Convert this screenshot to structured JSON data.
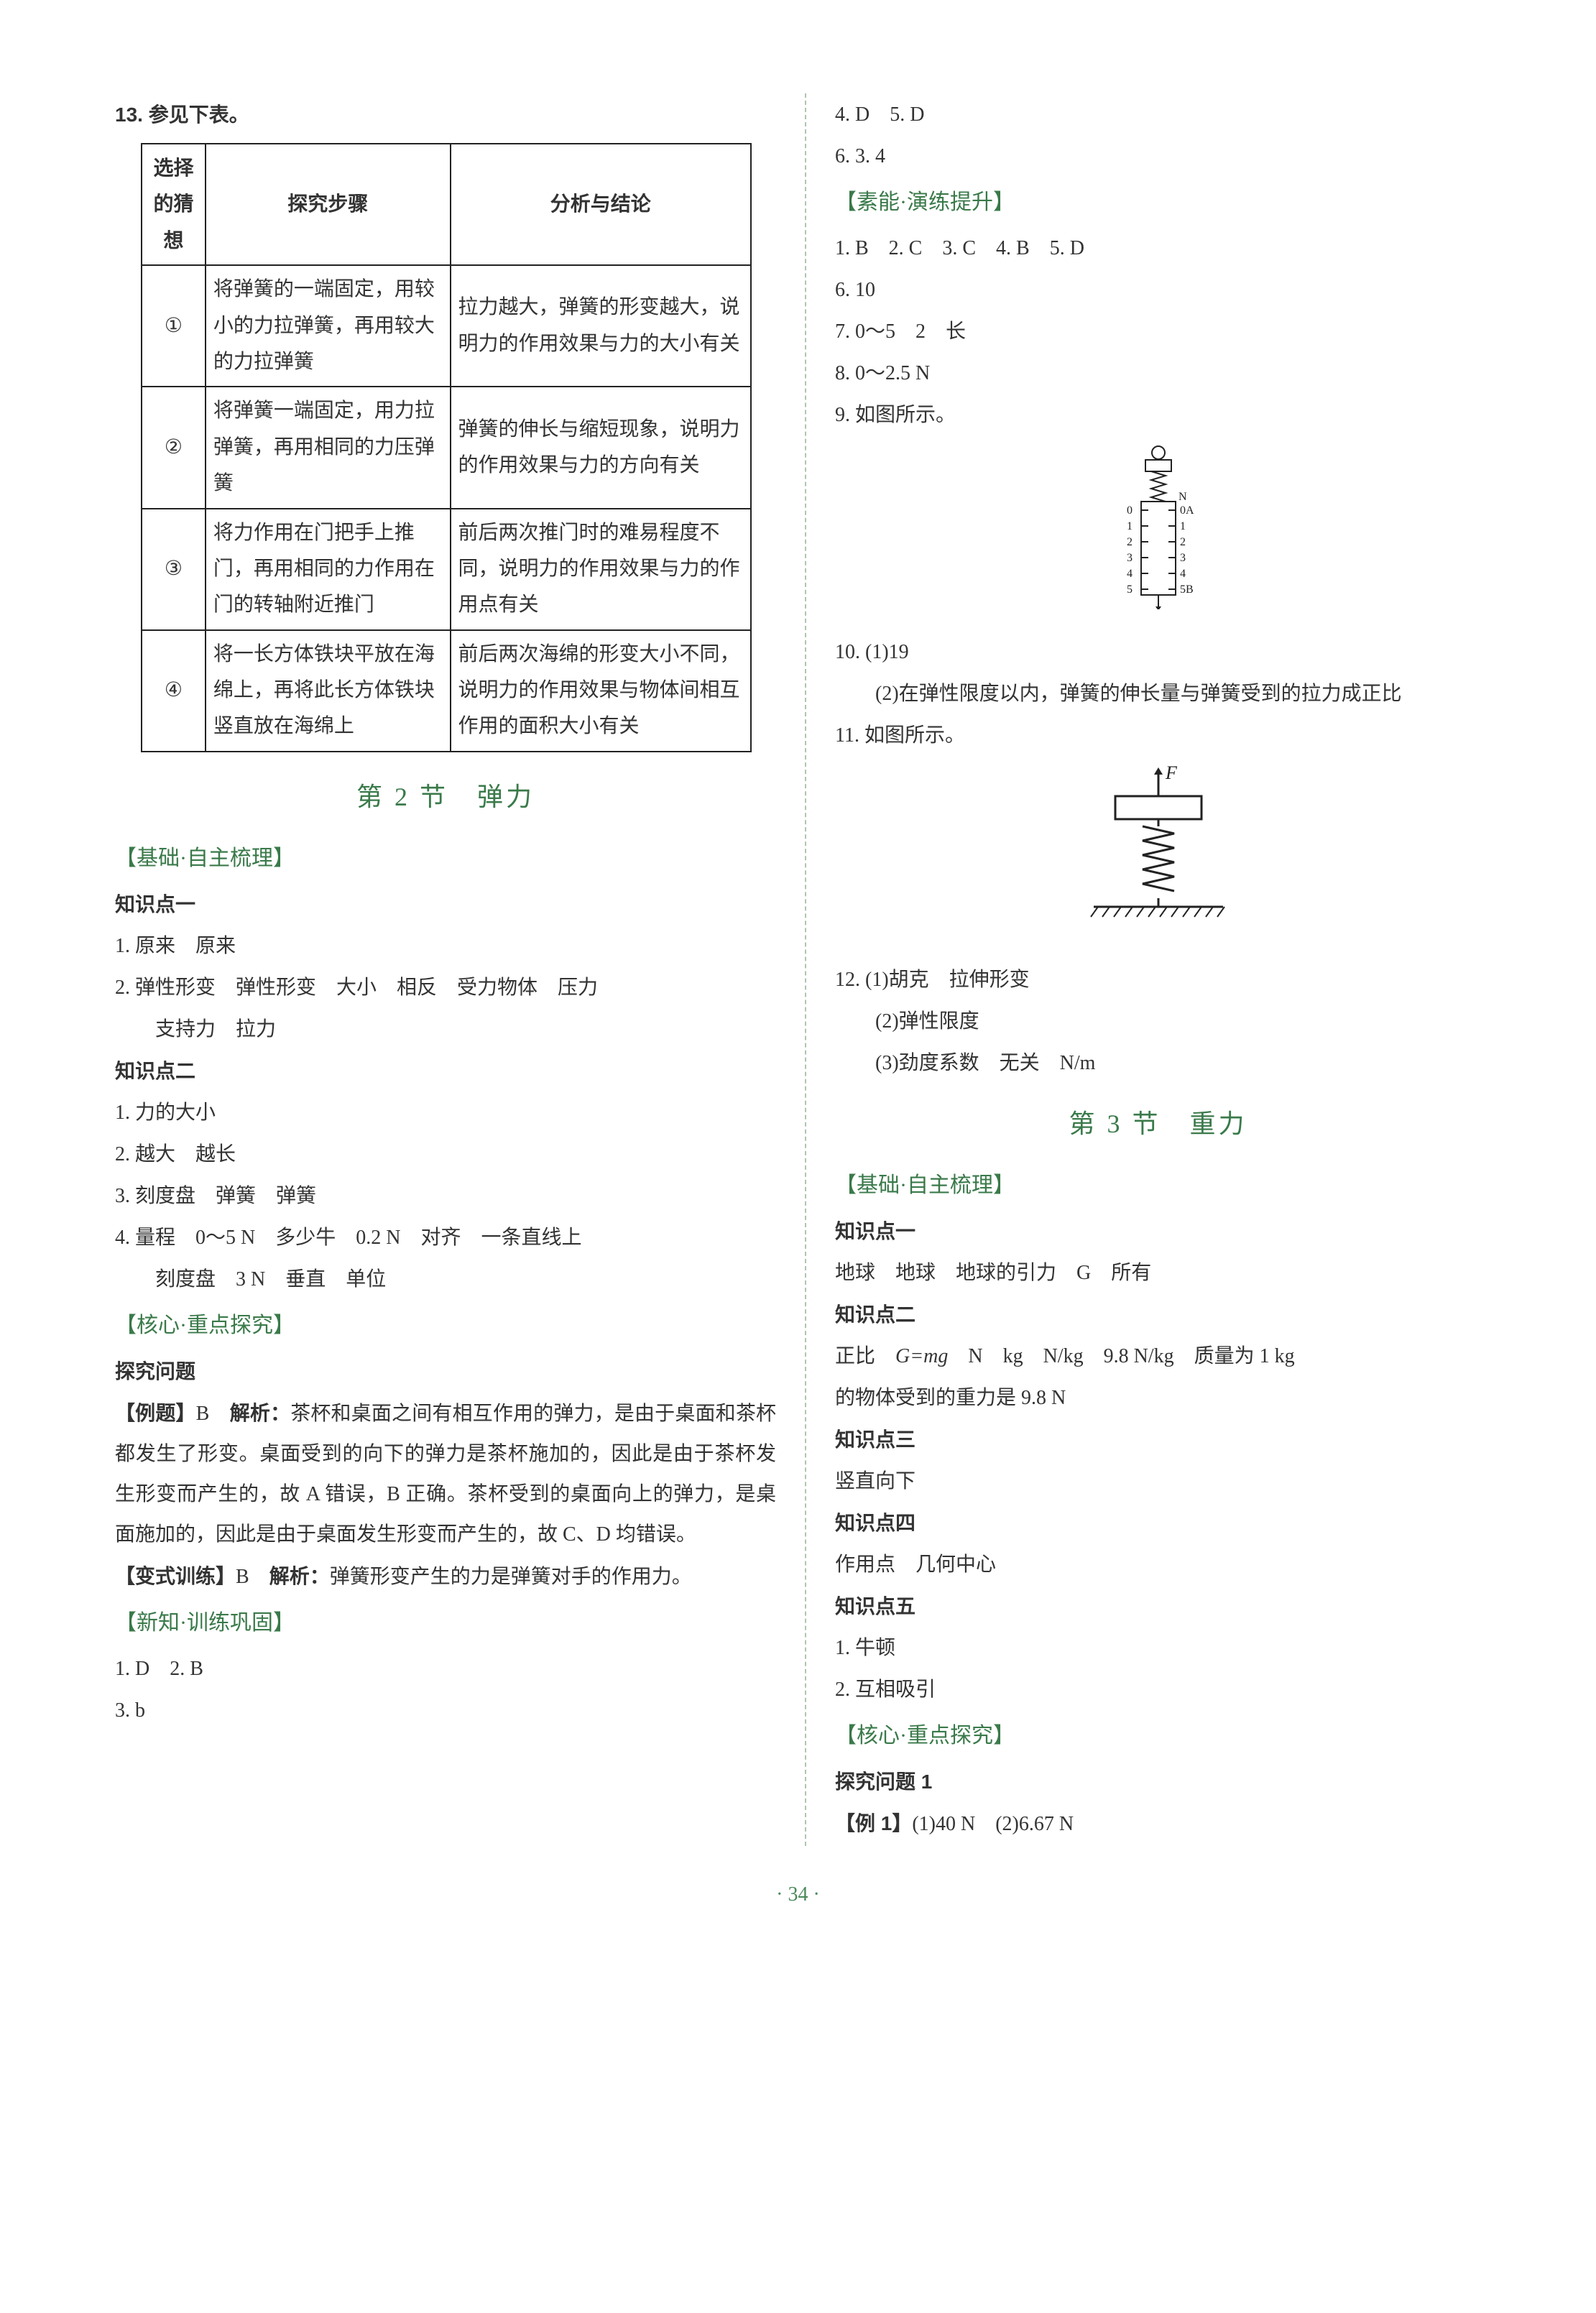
{
  "left": {
    "q13_intro": "13. 参见下表。",
    "table": {
      "headers": [
        "选择的猜想",
        "探究步骤",
        "分析与结论"
      ],
      "rows": [
        {
          "hyp": "①",
          "steps": "将弹簧的一端固定，用较小的力拉弹簧，再用较大的力拉弹簧",
          "conclusion": "拉力越大，弹簧的形变越大，说明力的作用效果与力的大小有关"
        },
        {
          "hyp": "②",
          "steps": "将弹簧一端固定，用力拉弹簧，再用相同的力压弹簧",
          "conclusion": "弹簧的伸长与缩短现象，说明力的作用效果与力的方向有关"
        },
        {
          "hyp": "③",
          "steps": "将力作用在门把手上推门，再用相同的力作用在门的转轴附近推门",
          "conclusion": "前后两次推门时的难易程度不同，说明力的作用效果与力的作用点有关"
        },
        {
          "hyp": "④",
          "steps": "将一长方体铁块平放在海绵上，再将此长方体铁块竖直放在海绵上",
          "conclusion": "前后两次海绵的形变大小不同，说明力的作用效果与物体间相互作用的面积大小有关"
        }
      ]
    },
    "section2_title": "第 2 节　弹力",
    "sub_basics": "【基础·自主梳理】",
    "kp1_title": "知识点一",
    "kp1_l1": "1. 原来　原来",
    "kp1_l2": "2. 弹性形变　弹性形变　大小　相反　受力物体　压力",
    "kp1_l2b": "支持力　拉力",
    "kp2_title": "知识点二",
    "kp2_l1": "1. 力的大小",
    "kp2_l2": "2. 越大　越长",
    "kp2_l3": "3. 刻度盘　弹簧　弹簧",
    "kp2_l4a": "4. 量程　0～5 N　多少牛　0.2 N　对齐　一条直线上",
    "kp2_l4b": "刻度盘　3 N　垂直　单位",
    "sub_core": "【核心·重点探究】",
    "core_title": "探究问题",
    "example_prefix": "【例题】",
    "example_ans": "B",
    "example_expl_label": "解析：",
    "example_expl": "茶杯和桌面之间有相互作用的弹力，是由于桌面和茶杯都发生了形变。桌面受到的向下的弹力是茶杯施加的，因此是由于茶杯发生形变而产生的，故 A 错误，B 正确。茶杯受到的桌面向上的弹力，是桌面施加的，因此是由于桌面发生形变而产生的，故 C、D 均错误。",
    "variant_prefix": "【变式训练】",
    "variant_ans": "B",
    "variant_expl_label": "解析：",
    "variant_expl": "弹簧形变产生的力是弹簧对手的作用力。",
    "sub_new": "【新知·训练巩固】",
    "new_l1": "1. D　2. B",
    "new_l2": "3. b"
  },
  "right": {
    "top_l1": "4. D　5. D",
    "top_l2": "6. 3. 4",
    "sub_suneng": "【素能·演练提升】",
    "sn_l1": "1. B　2. C　3. C　4. B　5. D",
    "sn_l2": "6. 10",
    "sn_l3": "7. 0～5　2　长",
    "sn_l4": "8. 0～2.5 N",
    "sn_l5": "9. 如图所示。",
    "fig9": {
      "scale_labels": [
        "0",
        "1",
        "2",
        "3",
        "4",
        "5"
      ],
      "right_labels": [
        "0A",
        "1",
        "2",
        "3",
        "4",
        "5B"
      ],
      "unit": "N"
    },
    "q10_a": "10. (1)19",
    "q10_b": "(2)在弹性限度以内，弹簧的伸长量与弹簧受到的拉力成正比",
    "q11": "11. 如图所示。",
    "fig11_label": "F",
    "q12_a": "12. (1)胡克　拉伸形变",
    "q12_b": "(2)弹性限度",
    "q12_c": "(3)劲度系数　无关　N/m",
    "section3_title": "第 3 节　重力",
    "sub_basics": "【基础·自主梳理】",
    "kp1_title": "知识点一",
    "kp1_line": "地球　地球　地球的引力　G　所有",
    "kp2_title": "知识点二",
    "kp2_line_a": "正比　",
    "kp2_formula": "G=mg",
    "kp2_line_b": "　N　kg　N/kg　9.8 N/kg　质量为 1 kg",
    "kp2_line_c": "的物体受到的重力是 9.8 N",
    "kp3_title": "知识点三",
    "kp3_line": "竖直向下",
    "kp4_title": "知识点四",
    "kp4_line": "作用点　几何中心",
    "kp5_title": "知识点五",
    "kp5_l1": "1. 牛顿",
    "kp5_l2": "2. 互相吸引",
    "sub_core": "【核心·重点探究】",
    "core_q1": "探究问题 1",
    "ex1_prefix": "【例 1】",
    "ex1_ans": "(1)40 N　(2)6.67 N"
  },
  "page_number": "· 34 ·"
}
